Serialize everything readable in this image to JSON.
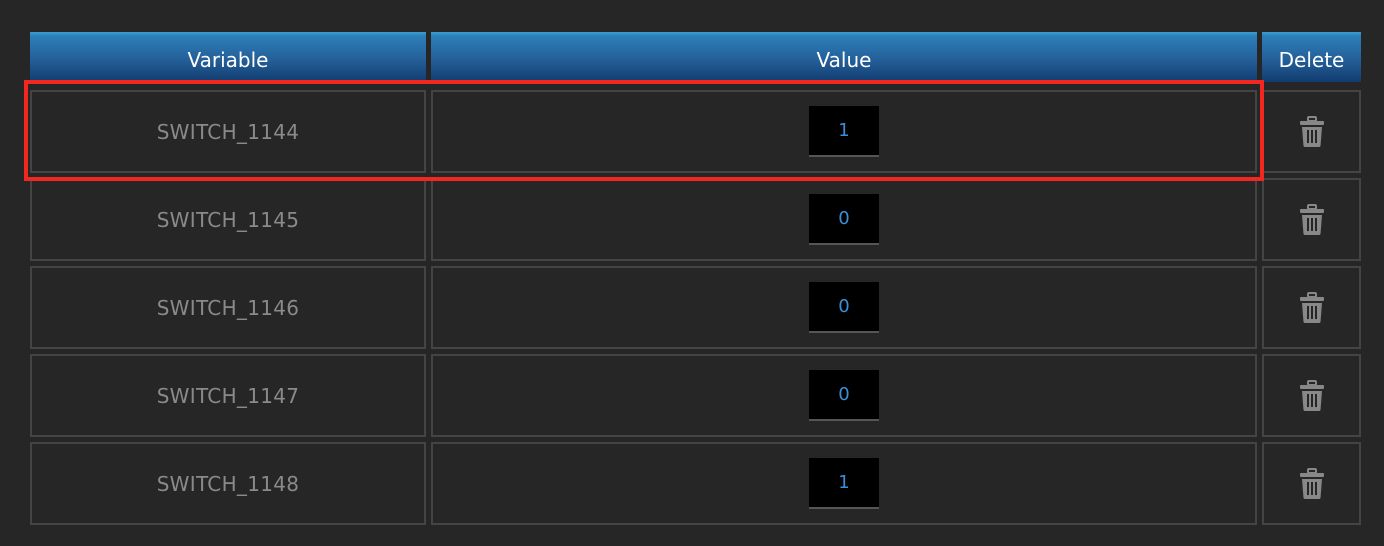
{
  "table": {
    "headers": {
      "variable": "Variable",
      "value": "Value",
      "delete": "Delete"
    },
    "rows": [
      {
        "variable": "SWITCH_1144",
        "value": "1",
        "highlighted": true
      },
      {
        "variable": "SWITCH_1145",
        "value": "0"
      },
      {
        "variable": "SWITCH_1146",
        "value": "0"
      },
      {
        "variable": "SWITCH_1147",
        "value": "0"
      },
      {
        "variable": "SWITCH_1148",
        "value": "1"
      }
    ]
  },
  "colors": {
    "header": "#245f98",
    "highlight": "#f2271f",
    "value_text": "#3a8fd8"
  },
  "icons": {
    "delete": "trash-icon"
  }
}
